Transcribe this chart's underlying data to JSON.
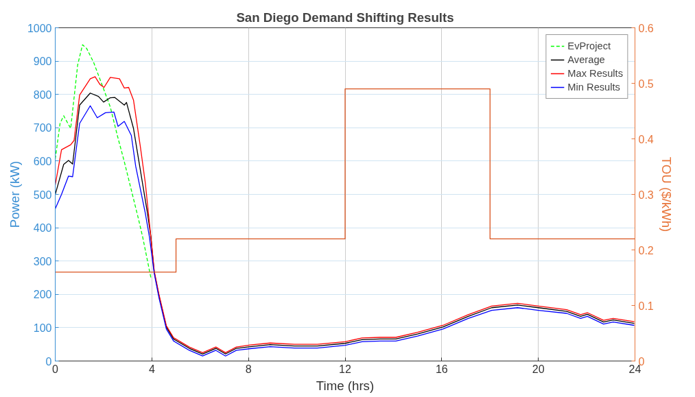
{
  "chart_data": {
    "type": "line",
    "title": "San Diego Demand Shifting Results",
    "xlabel": "Time (hrs)",
    "ylabel": "Power (kW)",
    "y2label": "TOU ($/kWh)",
    "xlim": [
      0,
      24
    ],
    "xticks": [
      0,
      4,
      8,
      12,
      16,
      20,
      24
    ],
    "ylim": [
      0,
      1000
    ],
    "yticks": [
      0,
      100,
      200,
      300,
      400,
      500,
      600,
      700,
      800,
      900,
      1000
    ],
    "y2lim": [
      0,
      0.6
    ],
    "y2ticks": [
      0,
      0.1,
      0.2,
      0.3,
      0.4,
      0.5,
      0.6
    ],
    "grid": true,
    "legend": "top right",
    "series": [
      {
        "name": "EvProject",
        "color": "#00ff00",
        "line_style": "dashed",
        "x": [
          0,
          0.2,
          0.35,
          0.64,
          0.93,
          1.13,
          1.3,
          1.59,
          1.88,
          2.28,
          2.57,
          2.86,
          3.15,
          3.44,
          3.62,
          3.96
        ],
        "values": [
          606,
          713,
          736,
          698,
          889,
          949,
          938,
          896,
          840,
          762,
          677,
          598,
          513,
          428,
          372,
          250
        ]
      },
      {
        "name": "Average",
        "color": "#000000",
        "line_style": "solid",
        "x": [
          0,
          0.35,
          0.55,
          0.72,
          1.01,
          1.45,
          1.79,
          2.0,
          2.28,
          2.46,
          2.86,
          2.95,
          3.24,
          3.53,
          3.82,
          3.96,
          4.1,
          4.3,
          4.6,
          4.9,
          5.55,
          6.1,
          6.65,
          7.05,
          7.5,
          8.07,
          8.9,
          9.9,
          10.85,
          12.0,
          12.7,
          13.45,
          14.1,
          15.0,
          16.05,
          17.1,
          18.07,
          19.14,
          20.0,
          21.17,
          21.75,
          22.03,
          22.7,
          23.1,
          23.97
        ],
        "values": [
          500,
          590,
          602,
          591,
          768,
          804,
          794,
          777,
          790,
          791,
          768,
          776,
          698,
          570,
          443,
          372,
          266,
          194,
          102,
          66,
          38,
          21,
          38,
          21,
          38,
          43,
          49,
          45,
          45,
          53,
          64,
          66,
          66,
          81,
          102,
          134,
          160,
          168,
          160,
          149,
          134,
          140,
          117,
          123,
          113
        ]
      },
      {
        "name": "Max Results",
        "color": "#ff0000",
        "line_style": "solid",
        "x": [
          0,
          0.26,
          0.64,
          0.78,
          1.01,
          1.45,
          1.65,
          1.85,
          2.02,
          2.28,
          2.66,
          2.86,
          3.04,
          3.24,
          3.53,
          3.73,
          3.96,
          4.1,
          4.3,
          4.6,
          4.9,
          5.55,
          6.1,
          6.65,
          7.05,
          7.5,
          8.07,
          8.9,
          9.9,
          10.85,
          12.0,
          12.7,
          13.45,
          14.1,
          15.0,
          16.05,
          17.1,
          18.07,
          19.14,
          20.0,
          21.17,
          21.75,
          22.03,
          22.7,
          23.1,
          23.97
        ],
        "values": [
          528,
          634,
          649,
          662,
          798,
          847,
          853,
          830,
          821,
          851,
          847,
          819,
          821,
          783,
          640,
          534,
          372,
          270,
          198,
          106,
          70,
          42,
          25,
          42,
          25,
          42,
          48,
          54,
          50,
          50,
          58,
          69,
          71,
          71,
          86,
          107,
          139,
          165,
          173,
          165,
          154,
          139,
          145,
          122,
          128,
          118
        ]
      },
      {
        "name": "Min Results",
        "color": "#0000ff",
        "line_style": "solid",
        "x": [
          0,
          0.26,
          0.55,
          0.72,
          1.01,
          1.45,
          1.74,
          2.08,
          2.43,
          2.6,
          2.86,
          3.15,
          3.33,
          3.73,
          3.9,
          4.1,
          4.3,
          4.6,
          4.9,
          5.55,
          6.1,
          6.65,
          7.05,
          7.5,
          8.07,
          8.9,
          9.9,
          10.85,
          12.0,
          12.7,
          13.45,
          14.1,
          15.0,
          16.05,
          17.1,
          18.07,
          19.14,
          20.0,
          21.17,
          21.75,
          22.03,
          22.7,
          23.1,
          23.97
        ],
        "values": [
          457,
          500,
          555,
          553,
          713,
          766,
          730,
          745,
          747,
          704,
          719,
          677,
          585,
          443,
          372,
          262,
          188,
          96,
          60,
          32,
          15,
          32,
          15,
          32,
          37,
          43,
          39,
          39,
          47,
          58,
          60,
          60,
          75,
          96,
          128,
          152,
          160,
          152,
          143,
          128,
          134,
          111,
          117,
          107
        ]
      },
      {
        "color": "#d9531e",
        "type": "step",
        "axis": "y2",
        "line_style": "solid",
        "x": [
          0,
          5,
          12,
          18,
          24
        ],
        "values": [
          0.16,
          0.22,
          0.49,
          0.22,
          0.22
        ]
      }
    ]
  }
}
